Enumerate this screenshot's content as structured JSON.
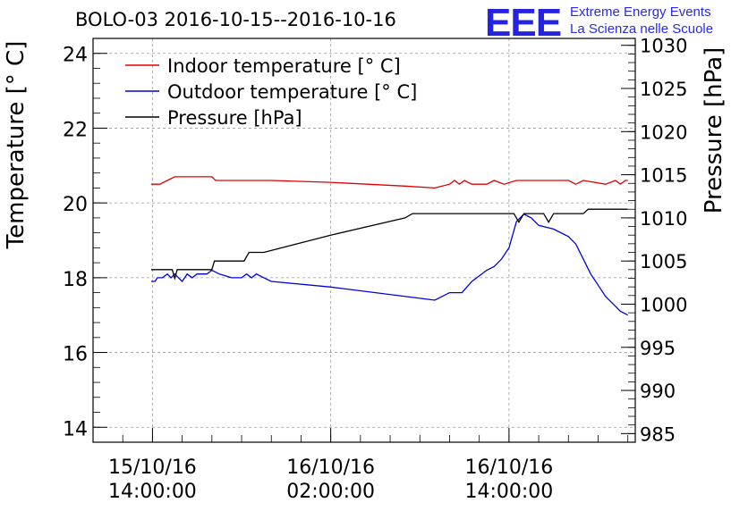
{
  "header": {
    "title": "BOLO-03 2016-10-15--2016-10-16",
    "logo_text": "EEE",
    "logo_line1": "Extreme Energy Events",
    "logo_line2": "La Scienza nelle Scuole"
  },
  "colors": {
    "indoor": "#e00000",
    "outdoor": "#0000dd",
    "pressure": "#000000",
    "logo": "#2323e0"
  },
  "chart_data": {
    "type": "line",
    "title": "BOLO-03 2016-10-15--2016-10-16",
    "xlabel": "",
    "ylabel": "Temperature [° C]",
    "ylabel_right": "Pressure [hPa]",
    "xlim": [
      "2016-10-15 10:00",
      "2016-10-16 22:30"
    ],
    "ylim": [
      13.6,
      24.4
    ],
    "ylim_right": [
      984,
      1030.8
    ],
    "grid": true,
    "legend_position": "top-left",
    "x_ticks": [
      {
        "date": "15/10/16",
        "time": "14:00:00",
        "t": "2016-10-15 14:00"
      },
      {
        "date": "16/10/16",
        "time": "02:00:00",
        "t": "2016-10-16 02:00"
      },
      {
        "date": "16/10/16",
        "time": "14:00:00",
        "t": "2016-10-16 14:00"
      }
    ],
    "y_ticks": [
      "14",
      "16",
      "18",
      "20",
      "22",
      "24"
    ],
    "y_ticks_right": [
      "985",
      "990",
      "995",
      "1000",
      "1005",
      "1010",
      "1015",
      "1020",
      "1025",
      "1030"
    ],
    "series": [
      {
        "name": "Indoor temperature [° C]",
        "axis": "left",
        "points": [
          [
            "2016-10-15 13:55",
            20.5
          ],
          [
            "2016-10-15 14:30",
            20.5
          ],
          [
            "2016-10-15 15:00",
            20.6
          ],
          [
            "2016-10-15 15:30",
            20.7
          ],
          [
            "2016-10-15 17:00",
            20.7
          ],
          [
            "2016-10-15 18:00",
            20.7
          ],
          [
            "2016-10-15 18:15",
            20.6
          ],
          [
            "2016-10-15 22:00",
            20.6
          ],
          [
            "2016-10-16 02:00",
            20.55
          ],
          [
            "2016-10-16 07:00",
            20.45
          ],
          [
            "2016-10-16 09:00",
            20.4
          ],
          [
            "2016-10-16 10:00",
            20.5
          ],
          [
            "2016-10-16 10:20",
            20.6
          ],
          [
            "2016-10-16 10:40",
            20.5
          ],
          [
            "2016-10-16 11:00",
            20.6
          ],
          [
            "2016-10-16 11:30",
            20.5
          ],
          [
            "2016-10-16 12:30",
            20.5
          ],
          [
            "2016-10-16 13:00",
            20.6
          ],
          [
            "2016-10-16 13:40",
            20.5
          ],
          [
            "2016-10-16 14:30",
            20.6
          ],
          [
            "2016-10-16 18:00",
            20.6
          ],
          [
            "2016-10-16 18:30",
            20.5
          ],
          [
            "2016-10-16 19:00",
            20.6
          ],
          [
            "2016-10-16 20:30",
            20.5
          ],
          [
            "2016-10-16 21:10",
            20.6
          ],
          [
            "2016-10-16 21:30",
            20.5
          ],
          [
            "2016-10-16 21:50",
            20.6
          ],
          [
            "2016-10-16 22:00",
            20.6
          ]
        ]
      },
      {
        "name": "Outdoor temperature [° C]",
        "axis": "left",
        "points": [
          [
            "2016-10-15 13:55",
            17.9
          ],
          [
            "2016-10-15 14:10",
            17.9
          ],
          [
            "2016-10-15 14:20",
            18.0
          ],
          [
            "2016-10-15 14:40",
            18.0
          ],
          [
            "2016-10-15 15:00",
            18.1
          ],
          [
            "2016-10-15 15:15",
            18.0
          ],
          [
            "2016-10-15 15:30",
            18.1
          ],
          [
            "2016-10-15 15:45",
            18.0
          ],
          [
            "2016-10-15 16:00",
            17.9
          ],
          [
            "2016-10-15 16:20",
            18.1
          ],
          [
            "2016-10-15 16:40",
            18.0
          ],
          [
            "2016-10-15 17:00",
            18.1
          ],
          [
            "2016-10-15 17:40",
            18.1
          ],
          [
            "2016-10-15 18:00",
            18.2
          ],
          [
            "2016-10-15 18:30",
            18.1
          ],
          [
            "2016-10-15 19:20",
            18.0
          ],
          [
            "2016-10-15 20:00",
            18.0
          ],
          [
            "2016-10-15 20:20",
            18.1
          ],
          [
            "2016-10-15 20:40",
            18.0
          ],
          [
            "2016-10-15 21:00",
            18.1
          ],
          [
            "2016-10-15 21:30",
            18.0
          ],
          [
            "2016-10-15 22:00",
            17.9
          ],
          [
            "2016-10-16 02:00",
            17.75
          ],
          [
            "2016-10-16 09:00",
            17.4
          ],
          [
            "2016-10-16 10:00",
            17.6
          ],
          [
            "2016-10-16 10:50",
            17.6
          ],
          [
            "2016-10-16 11:30",
            17.9
          ],
          [
            "2016-10-16 12:30",
            18.2
          ],
          [
            "2016-10-16 13:00",
            18.3
          ],
          [
            "2016-10-16 13:30",
            18.5
          ],
          [
            "2016-10-16 14:00",
            18.8
          ],
          [
            "2016-10-16 14:30",
            19.5
          ],
          [
            "2016-10-16 15:00",
            19.7
          ],
          [
            "2016-10-16 15:30",
            19.6
          ],
          [
            "2016-10-16 16:00",
            19.4
          ],
          [
            "2016-10-16 17:00",
            19.3
          ],
          [
            "2016-10-16 18:00",
            19.1
          ],
          [
            "2016-10-16 18:30",
            18.9
          ],
          [
            "2016-10-16 19:00",
            18.5
          ],
          [
            "2016-10-16 19:30",
            18.1
          ],
          [
            "2016-10-16 20:00",
            17.8
          ],
          [
            "2016-10-16 20:30",
            17.5
          ],
          [
            "2016-10-16 21:00",
            17.3
          ],
          [
            "2016-10-16 21:30",
            17.1
          ],
          [
            "2016-10-16 22:00",
            17.0
          ]
        ]
      },
      {
        "name": "Pressure [hPa]",
        "axis": "right",
        "points": [
          [
            "2016-10-15 13:55",
            1004.0
          ],
          [
            "2016-10-15 14:20",
            1004.0
          ],
          [
            "2016-10-15 15:20",
            1004.0
          ],
          [
            "2016-10-15 15:30",
            1003.0
          ],
          [
            "2016-10-15 15:40",
            1004.0
          ],
          [
            "2016-10-15 18:00",
            1004.0
          ],
          [
            "2016-10-15 18:10",
            1005.0
          ],
          [
            "2016-10-15 20:10",
            1005.0
          ],
          [
            "2016-10-15 20:30",
            1006.0
          ],
          [
            "2016-10-15 21:30",
            1006.0
          ],
          [
            "2016-10-16 02:00",
            1008.0
          ],
          [
            "2016-10-16 07:00",
            1010.0
          ],
          [
            "2016-10-16 07:30",
            1010.5
          ],
          [
            "2016-10-16 14:20",
            1010.5
          ],
          [
            "2016-10-16 14:40",
            1009.5
          ],
          [
            "2016-10-16 15:00",
            1010.5
          ],
          [
            "2016-10-16 16:20",
            1010.5
          ],
          [
            "2016-10-16 16:40",
            1009.5
          ],
          [
            "2016-10-16 17:00",
            1010.5
          ],
          [
            "2016-10-16 19:00",
            1010.5
          ],
          [
            "2016-10-16 19:20",
            1011.0
          ],
          [
            "2016-10-16 22:00",
            1011.0
          ]
        ]
      }
    ]
  }
}
